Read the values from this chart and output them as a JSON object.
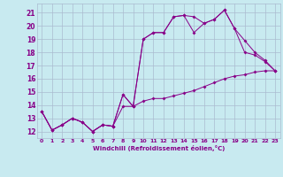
{
  "background_color": "#c8eaf0",
  "grid_color": "#aabbd0",
  "line_color": "#880088",
  "xlabel": "Windchill (Refroidissement éolien,°C)",
  "xlim": [
    -0.5,
    23.5
  ],
  "ylim": [
    11.5,
    21.7
  ],
  "yticks": [
    12,
    13,
    14,
    15,
    16,
    17,
    18,
    19,
    20,
    21
  ],
  "xticks": [
    0,
    1,
    2,
    3,
    4,
    5,
    6,
    7,
    8,
    9,
    10,
    11,
    12,
    13,
    14,
    15,
    16,
    17,
    18,
    19,
    20,
    21,
    22,
    23
  ],
  "line1_x": [
    0,
    1,
    2,
    3,
    4,
    5,
    6,
    7,
    8,
    9,
    10,
    11,
    12,
    13,
    14,
    15,
    16,
    17,
    18,
    19,
    20,
    21,
    22,
    23
  ],
  "line1_y": [
    13.5,
    12.1,
    12.5,
    13.0,
    12.7,
    12.0,
    12.5,
    12.4,
    13.9,
    13.9,
    14.3,
    14.5,
    14.5,
    14.7,
    14.9,
    15.1,
    15.4,
    15.7,
    16.0,
    16.2,
    16.3,
    16.5,
    16.6,
    16.6
  ],
  "line2_x": [
    0,
    1,
    2,
    3,
    4,
    5,
    6,
    7,
    8,
    9,
    10,
    11,
    12,
    13,
    14,
    15,
    16,
    17,
    18,
    19,
    20,
    21,
    22,
    23
  ],
  "line2_y": [
    13.5,
    12.1,
    12.5,
    13.0,
    12.7,
    12.0,
    12.5,
    12.4,
    14.8,
    13.9,
    19.0,
    19.5,
    19.5,
    20.7,
    20.8,
    20.7,
    20.2,
    20.5,
    21.2,
    19.8,
    18.9,
    18.0,
    17.4,
    16.6
  ],
  "line3_x": [
    0,
    1,
    2,
    3,
    4,
    5,
    6,
    7,
    8,
    9,
    10,
    11,
    12,
    13,
    14,
    15,
    16,
    17,
    18,
    19,
    20,
    21,
    22,
    23
  ],
  "line3_y": [
    13.5,
    12.1,
    12.5,
    13.0,
    12.7,
    12.0,
    12.5,
    12.4,
    14.8,
    13.9,
    19.0,
    19.5,
    19.5,
    20.7,
    20.8,
    19.5,
    20.2,
    20.5,
    21.2,
    19.8,
    18.0,
    17.8,
    17.3,
    16.6
  ]
}
